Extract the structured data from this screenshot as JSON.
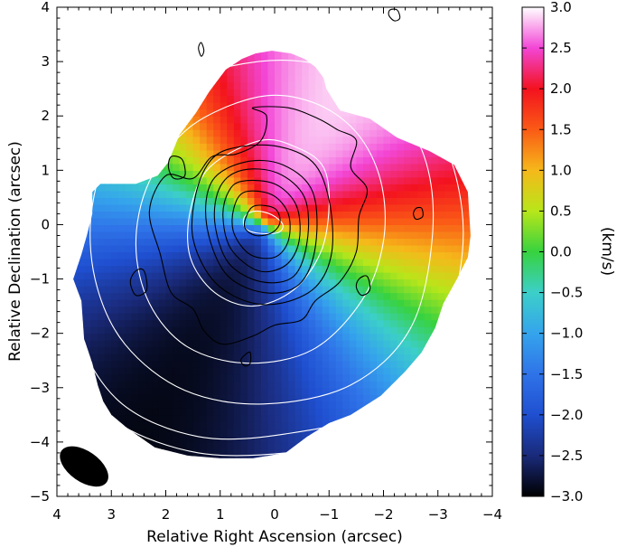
{
  "chart_data": {
    "type": "heatmap",
    "subtype": "velocity-field map with intensity contours",
    "xlabel": "Relative Right Ascension (arcsec)",
    "ylabel": "Relative Declination (arcsec)",
    "xlim": [
      4,
      -4
    ],
    "ylim": [
      -5,
      4
    ],
    "x_ticks": [
      4,
      3,
      2,
      1,
      0,
      -1,
      -2,
      -3,
      -4
    ],
    "y_ticks": [
      4,
      3,
      2,
      1,
      0,
      -1,
      -2,
      -3,
      -4,
      -5
    ],
    "colorbar": {
      "label": "(km/s)",
      "range": [
        -3.0,
        3.0
      ],
      "ticks": [
        "3.0",
        "2.5",
        "2.0",
        "1.5",
        "1.0",
        "0.5",
        "0.0",
        "−0.5",
        "−1.0",
        "−1.5",
        "−2.0",
        "−2.5",
        "−3.0"
      ],
      "tick_values": [
        3.0,
        2.5,
        2.0,
        1.5,
        1.0,
        0.5,
        0.0,
        -0.5,
        -1.0,
        -1.5,
        -2.0,
        -2.5,
        -3.0
      ],
      "colormap": [
        {
          "v": -3.0,
          "color": "#000000"
        },
        {
          "v": -2.5,
          "color": "#1a2a7a"
        },
        {
          "v": -2.0,
          "color": "#1f4fd0"
        },
        {
          "v": -1.5,
          "color": "#2f73e8"
        },
        {
          "v": -1.0,
          "color": "#35a4ec"
        },
        {
          "v": -0.5,
          "color": "#3ccfc9"
        },
        {
          "v": 0.0,
          "color": "#37d23f"
        },
        {
          "v": 0.5,
          "color": "#b8e61a"
        },
        {
          "v": 1.0,
          "color": "#f6b81a"
        },
        {
          "v": 1.5,
          "color": "#fa5a16"
        },
        {
          "v": 2.0,
          "color": "#f3121f"
        },
        {
          "v": 2.5,
          "color": "#f346d6"
        },
        {
          "v": 3.0,
          "color": "#ffffff"
        }
      ]
    },
    "velocity_field": {
      "center": [
        0.2,
        0.0
      ],
      "peak_velocity": 3.0,
      "position_angle_deg": 30
    },
    "beam": {
      "center": [
        3.5,
        -4.45
      ],
      "major": 0.75,
      "minor": 0.45,
      "angle_deg": 35
    },
    "white_contours": [
      {
        "level": 1,
        "points": [
          [
            0.35,
            0.25
          ],
          [
            0.05,
            0.18
          ],
          [
            -0.15,
            0.0
          ],
          [
            -0.05,
            -0.15
          ],
          [
            0.35,
            -0.15
          ],
          [
            0.55,
            -0.05
          ],
          [
            0.55,
            0.15
          ]
        ]
      },
      {
        "level": 2,
        "points": [
          [
            0.25,
            1.55
          ],
          [
            -0.45,
            1.4
          ],
          [
            -0.9,
            1.05
          ],
          [
            -1.0,
            0.35
          ],
          [
            -0.85,
            -0.5
          ],
          [
            -0.35,
            -1.2
          ],
          [
            0.4,
            -1.5
          ],
          [
            1.1,
            -1.25
          ],
          [
            1.55,
            -0.6
          ],
          [
            1.55,
            0.25
          ],
          [
            1.2,
            1.05
          ]
        ]
      },
      {
        "level": 3,
        "points": [
          [
            0.3,
            2.35
          ],
          [
            -0.7,
            2.25
          ],
          [
            -1.5,
            1.7
          ],
          [
            -1.95,
            0.8
          ],
          [
            -2.0,
            -0.3
          ],
          [
            -1.6,
            -1.4
          ],
          [
            -0.7,
            -2.3
          ],
          [
            0.5,
            -2.55
          ],
          [
            1.6,
            -2.25
          ],
          [
            2.3,
            -1.45
          ],
          [
            2.55,
            -0.35
          ],
          [
            2.3,
            0.8
          ],
          [
            1.55,
            1.8
          ]
        ]
      },
      {
        "level": 4,
        "points": [
          [
            0.3,
            3.0
          ],
          [
            -1.0,
            2.9
          ],
          [
            -2.05,
            2.3
          ],
          [
            -2.75,
            1.25
          ],
          [
            -2.9,
            -0.2
          ],
          [
            -2.5,
            -1.9
          ],
          [
            -1.4,
            -2.95
          ],
          [
            0.2,
            -3.3
          ],
          [
            1.65,
            -3.05
          ],
          [
            2.75,
            -2.2
          ],
          [
            3.3,
            -1.0
          ],
          [
            3.35,
            0.35
          ],
          [
            2.9,
            1.6
          ],
          [
            1.9,
            2.55
          ]
        ]
      },
      {
        "level": 5,
        "points": [
          [
            0.6,
            3.3
          ],
          [
            -0.5,
            3.35
          ],
          [
            -1.7,
            3.0
          ],
          [
            -2.7,
            2.2
          ],
          [
            -3.3,
            1.0
          ],
          [
            -3.45,
            -0.5
          ],
          [
            -3.0,
            -2.2
          ],
          [
            -1.9,
            -3.4
          ],
          [
            -0.2,
            -3.85
          ],
          [
            1.4,
            -3.9
          ],
          [
            2.8,
            -3.3
          ],
          [
            3.6,
            -2.1
          ],
          [
            3.85,
            -0.7
          ],
          [
            3.7,
            0.6
          ],
          [
            3.0,
            1.9
          ],
          [
            1.9,
            2.9
          ]
        ]
      },
      {
        "level": 6,
        "points": [
          [
            1.2,
            3.35
          ],
          [
            0.0,
            3.5
          ],
          [
            -1.3,
            3.3
          ],
          [
            -2.4,
            2.8
          ],
          [
            -3.2,
            2.0
          ],
          [
            -3.6,
            0.6
          ],
          [
            -3.6,
            -0.9
          ],
          [
            -3.3,
            -2.2
          ],
          [
            -2.7,
            -3.2
          ],
          [
            -1.6,
            -3.9
          ],
          [
            -0.2,
            -4.2
          ],
          [
            1.4,
            -4.2
          ],
          [
            2.8,
            -3.7
          ],
          [
            3.5,
            -2.9
          ],
          [
            3.75,
            -1.4
          ],
          [
            3.6,
            0.2
          ],
          [
            3.2,
            1.5
          ],
          [
            2.5,
            2.5
          ]
        ]
      }
    ],
    "black_contours": [
      {
        "level": 1,
        "points": [
          [
            0.35,
            0.35
          ],
          [
            0.0,
            0.3
          ],
          [
            -0.1,
            0.05
          ],
          [
            0.05,
            -0.15
          ],
          [
            0.35,
            -0.2
          ],
          [
            0.55,
            -0.05
          ],
          [
            0.5,
            0.2
          ]
        ]
      },
      {
        "level": 2,
        "points": [
          [
            0.55,
            0.6
          ],
          [
            0.05,
            0.55
          ],
          [
            -0.25,
            0.2
          ],
          [
            -0.25,
            -0.3
          ],
          [
            0.0,
            -0.6
          ],
          [
            0.45,
            -0.55
          ],
          [
            0.75,
            -0.15
          ],
          [
            0.75,
            0.3
          ]
        ]
      },
      {
        "level": 3,
        "points": [
          [
            0.6,
            0.8
          ],
          [
            0.0,
            0.75
          ],
          [
            -0.4,
            0.35
          ],
          [
            -0.45,
            -0.3
          ],
          [
            -0.2,
            -0.75
          ],
          [
            0.3,
            -0.85
          ],
          [
            0.8,
            -0.45
          ],
          [
            0.95,
            0.15
          ],
          [
            0.85,
            0.6
          ]
        ]
      },
      {
        "level": 4,
        "points": [
          [
            0.6,
            1.0
          ],
          [
            -0.05,
            0.95
          ],
          [
            -0.55,
            0.5
          ],
          [
            -0.6,
            -0.3
          ],
          [
            -0.35,
            -0.95
          ],
          [
            0.25,
            -1.05
          ],
          [
            0.85,
            -0.7
          ],
          [
            1.1,
            0.05
          ],
          [
            1.0,
            0.7
          ]
        ]
      },
      {
        "level": 5,
        "points": [
          [
            0.55,
            1.15
          ],
          [
            -0.15,
            1.1
          ],
          [
            -0.7,
            0.6
          ],
          [
            -0.75,
            -0.4
          ],
          [
            -0.45,
            -1.1
          ],
          [
            0.2,
            -1.25
          ],
          [
            0.9,
            -0.9
          ],
          [
            1.25,
            0.0
          ],
          [
            1.15,
            0.8
          ]
        ]
      },
      {
        "level": 6,
        "points": [
          [
            0.8,
            1.4
          ],
          [
            0.0,
            1.45
          ],
          [
            -0.7,
            1.15
          ],
          [
            -1.0,
            0.45
          ],
          [
            -1.05,
            -0.5
          ],
          [
            -0.75,
            -1.15
          ],
          [
            -0.1,
            -1.45
          ],
          [
            0.55,
            -1.4
          ],
          [
            1.15,
            -1.0
          ],
          [
            1.5,
            -0.25
          ],
          [
            1.45,
            0.55
          ],
          [
            1.2,
            1.15
          ]
        ]
      },
      {
        "level": 7,
        "points": [
          [
            0.4,
            2.15
          ],
          [
            -0.25,
            2.15
          ],
          [
            -0.8,
            1.95
          ],
          [
            -1.15,
            1.75
          ],
          [
            -1.5,
            1.55
          ],
          [
            -1.4,
            1.05
          ],
          [
            -1.7,
            0.65
          ],
          [
            -1.55,
            0.15
          ],
          [
            -1.5,
            -0.5
          ],
          [
            -1.2,
            -1.05
          ],
          [
            -0.75,
            -1.4
          ],
          [
            -0.5,
            -1.75
          ],
          [
            0.0,
            -1.85
          ],
          [
            0.4,
            -2.05
          ],
          [
            0.95,
            -2.2
          ],
          [
            1.3,
            -1.95
          ],
          [
            1.5,
            -1.55
          ],
          [
            1.9,
            -1.25
          ],
          [
            2.1,
            -0.55
          ],
          [
            2.3,
            0.25
          ],
          [
            2.0,
            0.9
          ],
          [
            1.5,
            0.85
          ],
          [
            1.15,
            1.25
          ],
          [
            0.7,
            1.3
          ],
          [
            0.25,
            1.55
          ],
          [
            0.15,
            2.0
          ]
        ]
      }
    ],
    "black_islands": [
      {
        "points": [
          [
            1.9,
            1.25
          ],
          [
            1.7,
            1.2
          ],
          [
            1.65,
            0.9
          ],
          [
            1.85,
            0.85
          ],
          [
            1.95,
            1.05
          ]
        ]
      },
      {
        "points": [
          [
            2.55,
            -0.85
          ],
          [
            2.4,
            -0.85
          ],
          [
            2.35,
            -1.2
          ],
          [
            2.55,
            -1.3
          ],
          [
            2.65,
            -1.05
          ]
        ]
      },
      {
        "points": [
          [
            -1.55,
            -1.0
          ],
          [
            -1.7,
            -0.95
          ],
          [
            -1.75,
            -1.2
          ],
          [
            -1.6,
            -1.3
          ],
          [
            -1.5,
            -1.15
          ]
        ]
      },
      {
        "points": [
          [
            -2.6,
            0.3
          ],
          [
            -2.7,
            0.3
          ],
          [
            -2.72,
            0.15
          ],
          [
            -2.6,
            0.1
          ],
          [
            -2.55,
            0.2
          ]
        ]
      },
      {
        "points": [
          [
            0.55,
            -2.4
          ],
          [
            0.45,
            -2.35
          ],
          [
            0.45,
            -2.55
          ],
          [
            0.55,
            -2.6
          ],
          [
            0.62,
            -2.5
          ]
        ]
      },
      {
        "points": [
          [
            1.4,
            3.25
          ],
          [
            1.35,
            3.1
          ],
          [
            1.3,
            3.2
          ],
          [
            1.35,
            3.35
          ]
        ]
      },
      {
        "points": [
          [
            -2.1,
            3.85
          ],
          [
            -2.2,
            3.75
          ],
          [
            -2.3,
            3.8
          ],
          [
            -2.25,
            3.95
          ],
          [
            -2.12,
            3.95
          ]
        ]
      }
    ],
    "data_mask": [
      [
        -0.95,
        2.5
      ],
      [
        -1.2,
        2.1
      ],
      [
        -1.75,
        1.95
      ],
      [
        -2.25,
        1.6
      ],
      [
        -2.85,
        1.35
      ],
      [
        -3.3,
        1.1
      ],
      [
        -3.55,
        0.6
      ],
      [
        -3.6,
        -0.2
      ],
      [
        -3.55,
        -0.6
      ],
      [
        -3.35,
        -1.0
      ],
      [
        -3.1,
        -1.45
      ],
      [
        -2.95,
        -1.9
      ],
      [
        -2.7,
        -2.35
      ],
      [
        -2.4,
        -2.7
      ],
      [
        -1.95,
        -3.15
      ],
      [
        -1.4,
        -3.5
      ],
      [
        -1.0,
        -3.65
      ],
      [
        -0.6,
        -3.9
      ],
      [
        -0.2,
        -4.2
      ],
      [
        0.4,
        -4.3
      ],
      [
        1.0,
        -4.3
      ],
      [
        1.6,
        -4.25
      ],
      [
        2.2,
        -4.1
      ],
      [
        2.7,
        -3.75
      ],
      [
        3.0,
        -3.5
      ],
      [
        3.15,
        -3.25
      ],
      [
        3.25,
        -2.95
      ],
      [
        3.35,
        -2.55
      ],
      [
        3.5,
        -2.1
      ],
      [
        3.55,
        -1.4
      ],
      [
        3.7,
        -1.0
      ],
      [
        3.55,
        -0.55
      ],
      [
        3.45,
        -0.2
      ],
      [
        3.35,
        0.2
      ],
      [
        3.35,
        0.6
      ],
      [
        3.2,
        0.75
      ],
      [
        2.55,
        0.75
      ],
      [
        2.15,
        0.9
      ],
      [
        1.95,
        1.15
      ],
      [
        1.75,
        1.65
      ],
      [
        1.45,
        2.05
      ],
      [
        1.2,
        2.45
      ],
      [
        0.9,
        2.85
      ],
      [
        0.6,
        3.05
      ],
      [
        0.35,
        3.15
      ],
      [
        0.05,
        3.2
      ],
      [
        -0.3,
        3.15
      ],
      [
        -0.55,
        3.05
      ],
      [
        -0.75,
        2.9
      ],
      [
        -0.9,
        2.7
      ]
    ]
  }
}
